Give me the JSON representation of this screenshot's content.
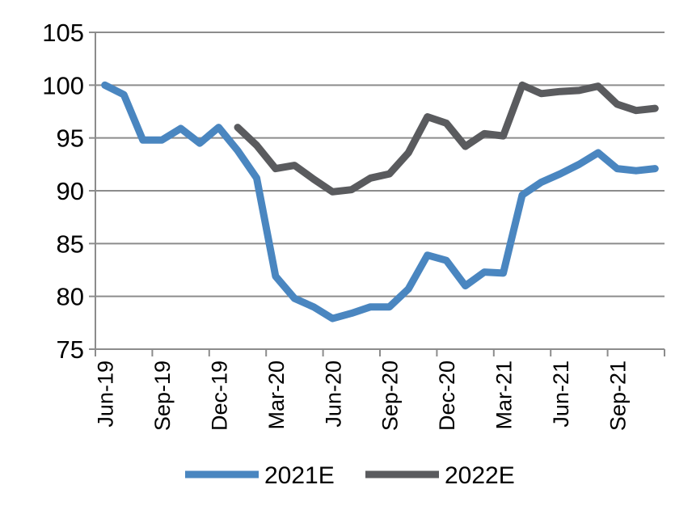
{
  "chart_data": {
    "type": "line",
    "title": "",
    "xlabel": "",
    "ylabel": "",
    "ylim": [
      75,
      105
    ],
    "yticks": [
      "75",
      "80",
      "85",
      "90",
      "95",
      "100",
      "105"
    ],
    "xtick_labels": [
      "Jun-19",
      "Sep-19",
      "Dec-19",
      "Mar-20",
      "Jun-20",
      "Sep-20",
      "Dec-20",
      "Mar-21",
      "Jun-21",
      "Sep-21"
    ],
    "months": [
      "Jun-19",
      "Jul-19",
      "Aug-19",
      "Sep-19",
      "Oct-19",
      "Nov-19",
      "Dec-19",
      "Jan-20",
      "Feb-20",
      "Mar-20",
      "Apr-20",
      "May-20",
      "Jun-20",
      "Jul-20",
      "Aug-20",
      "Sep-20",
      "Oct-20",
      "Nov-20",
      "Dec-20",
      "Jan-21",
      "Feb-21",
      "Mar-21",
      "Apr-21",
      "May-21",
      "Jun-21",
      "Jul-21",
      "Aug-21",
      "Sep-21",
      "Oct-21",
      "Nov-21"
    ],
    "grid": "horizontal",
    "legend_position": "bottom",
    "series": [
      {
        "name": "2021E",
        "color": "#4a86c0",
        "values": [
          100.0,
          99.1,
          94.8,
          94.8,
          95.9,
          94.5,
          96.0,
          93.8,
          91.2,
          81.9,
          79.8,
          79.0,
          77.9,
          78.4,
          79.0,
          79.0,
          80.7,
          83.9,
          83.4,
          81.0,
          82.3,
          82.2,
          89.6,
          90.8,
          91.6,
          92.5,
          93.6,
          92.1,
          91.9,
          92.1
        ]
      },
      {
        "name": "2022E",
        "color": "#5a5b5e",
        "values": [
          null,
          null,
          null,
          null,
          null,
          null,
          null,
          96.0,
          94.3,
          92.1,
          92.4,
          91.1,
          89.9,
          90.1,
          91.2,
          91.6,
          93.6,
          97.0,
          96.4,
          94.2,
          95.4,
          95.2,
          100.0,
          99.2,
          99.4,
          99.5,
          99.9,
          98.2,
          97.6,
          97.8
        ]
      }
    ]
  }
}
